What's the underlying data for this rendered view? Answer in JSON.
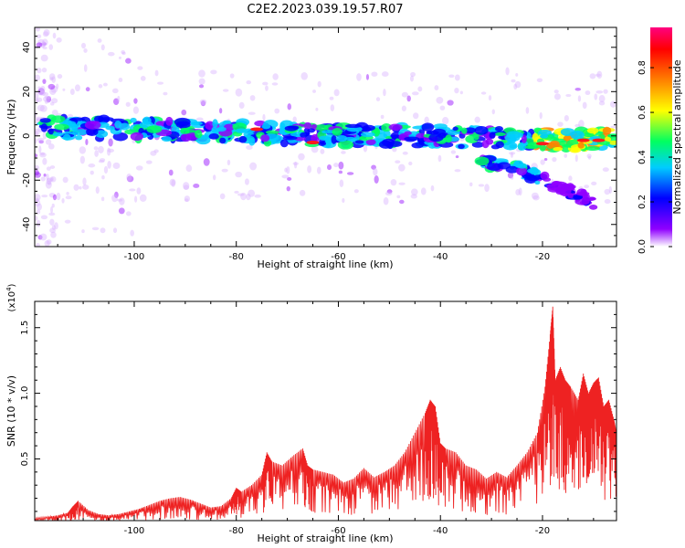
{
  "title": "C2E2.2023.039.19.57.R07",
  "chart_data": [
    {
      "type": "heatmap",
      "xlabel": "Height of straight line (km)",
      "ylabel": "Frequency (Hz)",
      "xlim": [
        -119.5,
        -5.5
      ],
      "ylim": [
        -50,
        49
      ],
      "xticks": [
        -100,
        -80,
        -60,
        -40,
        -20
      ],
      "yticks": [
        -40,
        -20,
        0,
        20,
        40
      ],
      "grid": false,
      "colorbar": {
        "label": "Normalized spectral amplitude",
        "range": [
          0.0,
          0.98
        ],
        "ticks": [
          "0.0",
          "0.2",
          "0.4",
          "0.6",
          "0.8"
        ],
        "colors": [
          "#ffffff",
          "#9000ff",
          "#0000ff",
          "#00ccff",
          "#00ff60",
          "#ffff00",
          "#ff8000",
          "#ff0000",
          "#ff0080"
        ]
      },
      "features": [
        {
          "desc": "main band",
          "x": [
            -118,
            -100,
            -80,
            -60,
            -40,
            -25,
            -15,
            -6
          ],
          "freq": [
            4,
            3,
            2,
            0,
            0,
            -1,
            -2,
            -1
          ]
        },
        {
          "desc": "secondary band",
          "x": [
            -32,
            -25,
            -20
          ],
          "freq": [
            -12,
            -14,
            -20
          ]
        },
        {
          "desc": "tail",
          "x": [
            -20,
            -10
          ],
          "freq": [
            -20,
            -30
          ]
        }
      ]
    },
    {
      "type": "line",
      "xlabel": "Height of straight line (km)",
      "ylabel": "SNR (10 * v/v)",
      "yscale_label": "(x10",
      "yscale_exp": "4",
      "xlim": [
        -119.5,
        -5.5
      ],
      "ylim": [
        0.03,
        1.7
      ],
      "xticks": [
        -100,
        -80,
        -60,
        -40,
        -20
      ],
      "yticks": [
        "0.5",
        "1.0",
        "1.5"
      ],
      "ytick_values": [
        0.5,
        1.0,
        1.5
      ],
      "grid": false,
      "color": "#ee2222",
      "x": [
        -119.5,
        -117,
        -115,
        -113,
        -112,
        -111,
        -109,
        -107,
        -105,
        -103,
        -101,
        -99,
        -97,
        -95,
        -93,
        -91,
        -89,
        -87,
        -85,
        -83,
        -81,
        -80,
        -79,
        -77,
        -75,
        -74,
        -73,
        -71,
        -69,
        -67,
        -66,
        -65,
        -63,
        -61,
        -59,
        -57,
        -55,
        -53,
        -51,
        -49,
        -47,
        -45,
        -43,
        -42,
        -41,
        -40,
        -39,
        -37,
        -35,
        -33,
        -31,
        -29,
        -27,
        -25,
        -23,
        -21,
        -19.5,
        -18.5,
        -18,
        -17.5,
        -16.5,
        -15.5,
        -14.5,
        -13,
        -12,
        -11,
        -10,
        -9,
        -8,
        -7,
        -6,
        -5.5
      ],
      "y": [
        0.05,
        0.06,
        0.07,
        0.09,
        0.14,
        0.18,
        0.11,
        0.08,
        0.07,
        0.08,
        0.1,
        0.12,
        0.15,
        0.18,
        0.2,
        0.21,
        0.19,
        0.16,
        0.13,
        0.14,
        0.2,
        0.28,
        0.25,
        0.3,
        0.38,
        0.55,
        0.48,
        0.45,
        0.52,
        0.58,
        0.45,
        0.42,
        0.4,
        0.38,
        0.32,
        0.35,
        0.43,
        0.36,
        0.4,
        0.45,
        0.55,
        0.7,
        0.85,
        0.95,
        0.9,
        0.62,
        0.58,
        0.55,
        0.45,
        0.42,
        0.35,
        0.4,
        0.36,
        0.45,
        0.55,
        0.7,
        1.05,
        1.45,
        1.66,
        1.1,
        1.2,
        1.1,
        1.05,
        0.95,
        1.15,
        1.0,
        1.08,
        1.12,
        0.9,
        0.95,
        0.8,
        0.7
      ]
    }
  ]
}
